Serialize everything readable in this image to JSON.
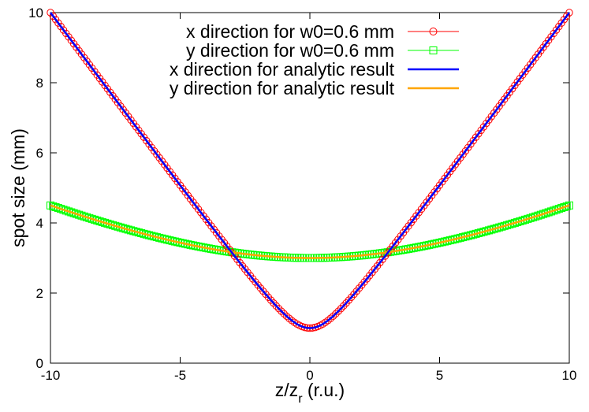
{
  "chart_data": {
    "type": "line",
    "title": "",
    "xlabel": {
      "base": "z/z",
      "subscript": "r",
      "suffix": " (r.u.)"
    },
    "ylabel": "spot size (mm)",
    "xlim": [
      -10,
      10
    ],
    "ylim": [
      0,
      10
    ],
    "xticks": [
      -10,
      -5,
      0,
      5,
      10
    ],
    "yticks": [
      0,
      2,
      4,
      6,
      8,
      10
    ],
    "xtick_labels": [
      "-10",
      "-5",
      "0",
      "5",
      "10"
    ],
    "ytick_labels": [
      "0",
      "2",
      "4",
      "6",
      "8",
      "10"
    ],
    "grid": false,
    "legend_position": "top-right",
    "series": [
      {
        "name": "x direction for w0=0.6 mm",
        "color": "#ff0000",
        "marker": "circle",
        "line": true,
        "w0": 1.0,
        "w_at_edge": 10.0,
        "samples": 201
      },
      {
        "name": "y direction for w0=0.6 mm",
        "color": "#00ff00",
        "marker": "square",
        "line": true,
        "w0": 3.0,
        "w_at_edge": 4.5,
        "samples": 201
      },
      {
        "name": "x direction for analytic result",
        "color": "#0000ff",
        "marker": "none",
        "line": true,
        "w0": 1.0,
        "w_at_edge": 10.0,
        "samples": 201
      },
      {
        "name": "y direction for analytic result",
        "color": "#ffa500",
        "marker": "none",
        "line": true,
        "w0": 3.0,
        "w_at_edge": 4.5,
        "samples": 201
      }
    ]
  }
}
